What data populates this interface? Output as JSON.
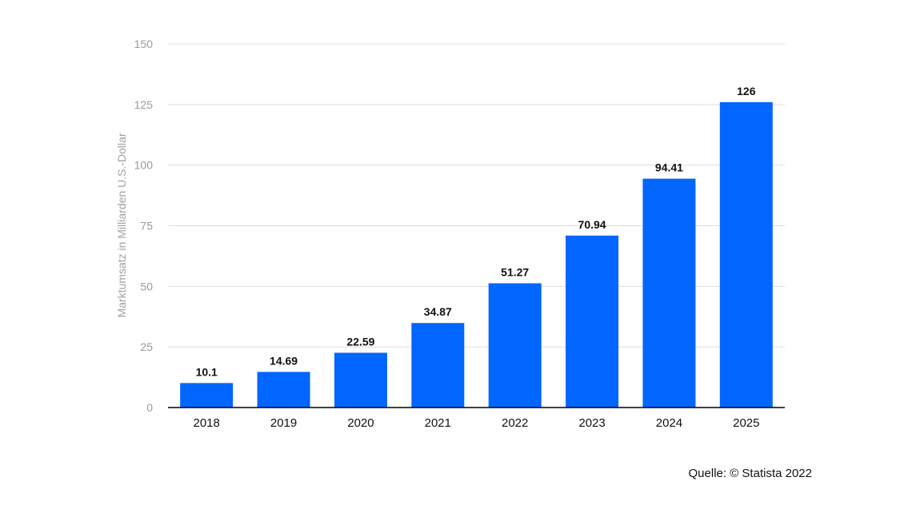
{
  "chart_data": {
    "type": "bar",
    "title": "",
    "xlabel": "",
    "ylabel": "Marktumsatz in Milliarden U.S.-Dollar",
    "categories": [
      "2018",
      "2019",
      "2020",
      "2021",
      "2022",
      "2023",
      "2024",
      "2025"
    ],
    "values": [
      10.1,
      14.69,
      22.59,
      34.87,
      51.27,
      70.94,
      94.41,
      126
    ],
    "value_labels": [
      "10.1",
      "14.69",
      "22.59",
      "34.87",
      "51.27",
      "70.94",
      "94.41",
      "126"
    ],
    "ylim": [
      0,
      150
    ],
    "yticks": [
      0,
      25,
      50,
      75,
      100,
      125,
      150
    ],
    "grid": true,
    "legend": "none",
    "bar_color": "#0066ff"
  },
  "source": "Quelle: © Statista 2022"
}
